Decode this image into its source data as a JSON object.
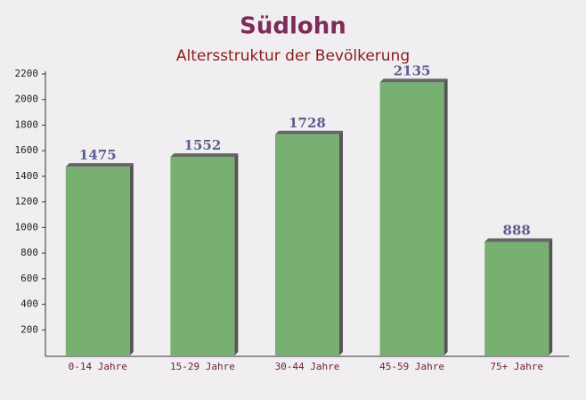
{
  "chart_data": {
    "type": "bar",
    "title": "Südlohn",
    "subtitle": "Altersstruktur der Bevölkerung",
    "categories": [
      "0-14 Jahre",
      "15-29 Jahre",
      "30-44 Jahre",
      "45-59 Jahre",
      "75+ Jahre"
    ],
    "values": [
      1475,
      1552,
      1728,
      2135,
      888
    ],
    "color": "#6aa864",
    "ylim": [
      0,
      2200
    ],
    "yticks": [
      200,
      400,
      600,
      800,
      1000,
      1200,
      1400,
      1600,
      1800,
      2000,
      2200
    ],
    "grid": false
  }
}
